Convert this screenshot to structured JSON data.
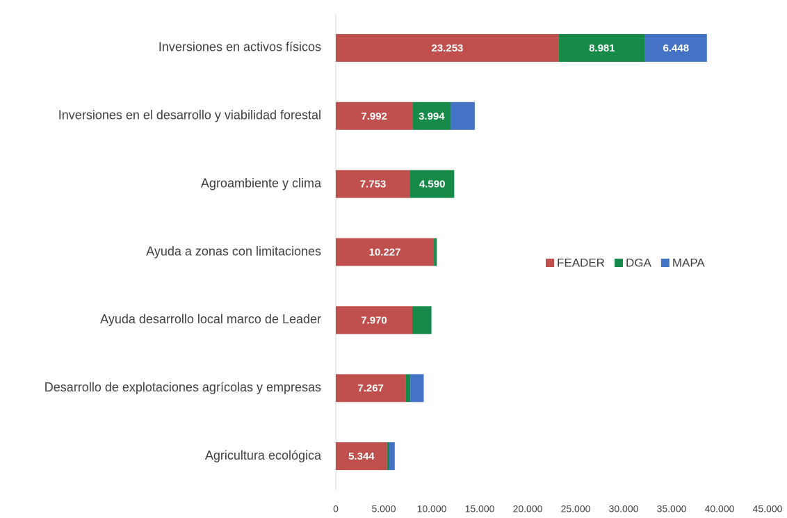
{
  "chart_data": {
    "type": "stacked_bar_horizontal",
    "categories": [
      "Inversiones en activos físicos",
      "Inversiones en el desarrollo y viabilidad forestal",
      "Agroambiente y clima",
      "Ayuda a zonas con limitaciones",
      "Ayuda desarrollo local marco de Leader",
      "Desarrollo de explotaciones agrícolas y empresas",
      "Agricultura ecológica"
    ],
    "series": [
      {
        "name": "FEADER",
        "color": "#c0504d",
        "values": [
          23253,
          7992,
          7753,
          10227,
          7970,
          7267,
          5344
        ],
        "value_labels": [
          "23.253",
          "7.992",
          "7.753",
          "10.227",
          "7.970",
          "7.267",
          "5.344"
        ]
      },
      {
        "name": "DGA",
        "color": "#178a4a",
        "values": [
          8981,
          3994,
          4590,
          300,
          2000,
          500,
          200
        ],
        "value_labels": [
          "8.981",
          "3.994",
          "4.590",
          null,
          null,
          null,
          null
        ]
      },
      {
        "name": "MAPA",
        "color": "#4472c4",
        "values": [
          6448,
          2500,
          0,
          0,
          0,
          1400,
          600
        ],
        "value_labels": [
          "6.448",
          null,
          null,
          null,
          null,
          null,
          null
        ]
      }
    ],
    "xlim": [
      0,
      45000
    ],
    "xticks": [
      0,
      {
        "value": 5000,
        "label": "5.000"
      },
      {
        "value": 10000,
        "label": "10.000"
      },
      {
        "value": 15000,
        "label": "15.000"
      },
      {
        "value": 20000,
        "label": "20.000"
      },
      {
        "value": 25000,
        "label": "25.000"
      },
      {
        "value": 30000,
        "label": "30.000"
      },
      {
        "value": 35000,
        "label": "35.000"
      },
      {
        "value": 40000,
        "label": "40.000"
      },
      {
        "value": 45000,
        "label": "45.000"
      }
    ],
    "grid": false,
    "legend": "right"
  }
}
